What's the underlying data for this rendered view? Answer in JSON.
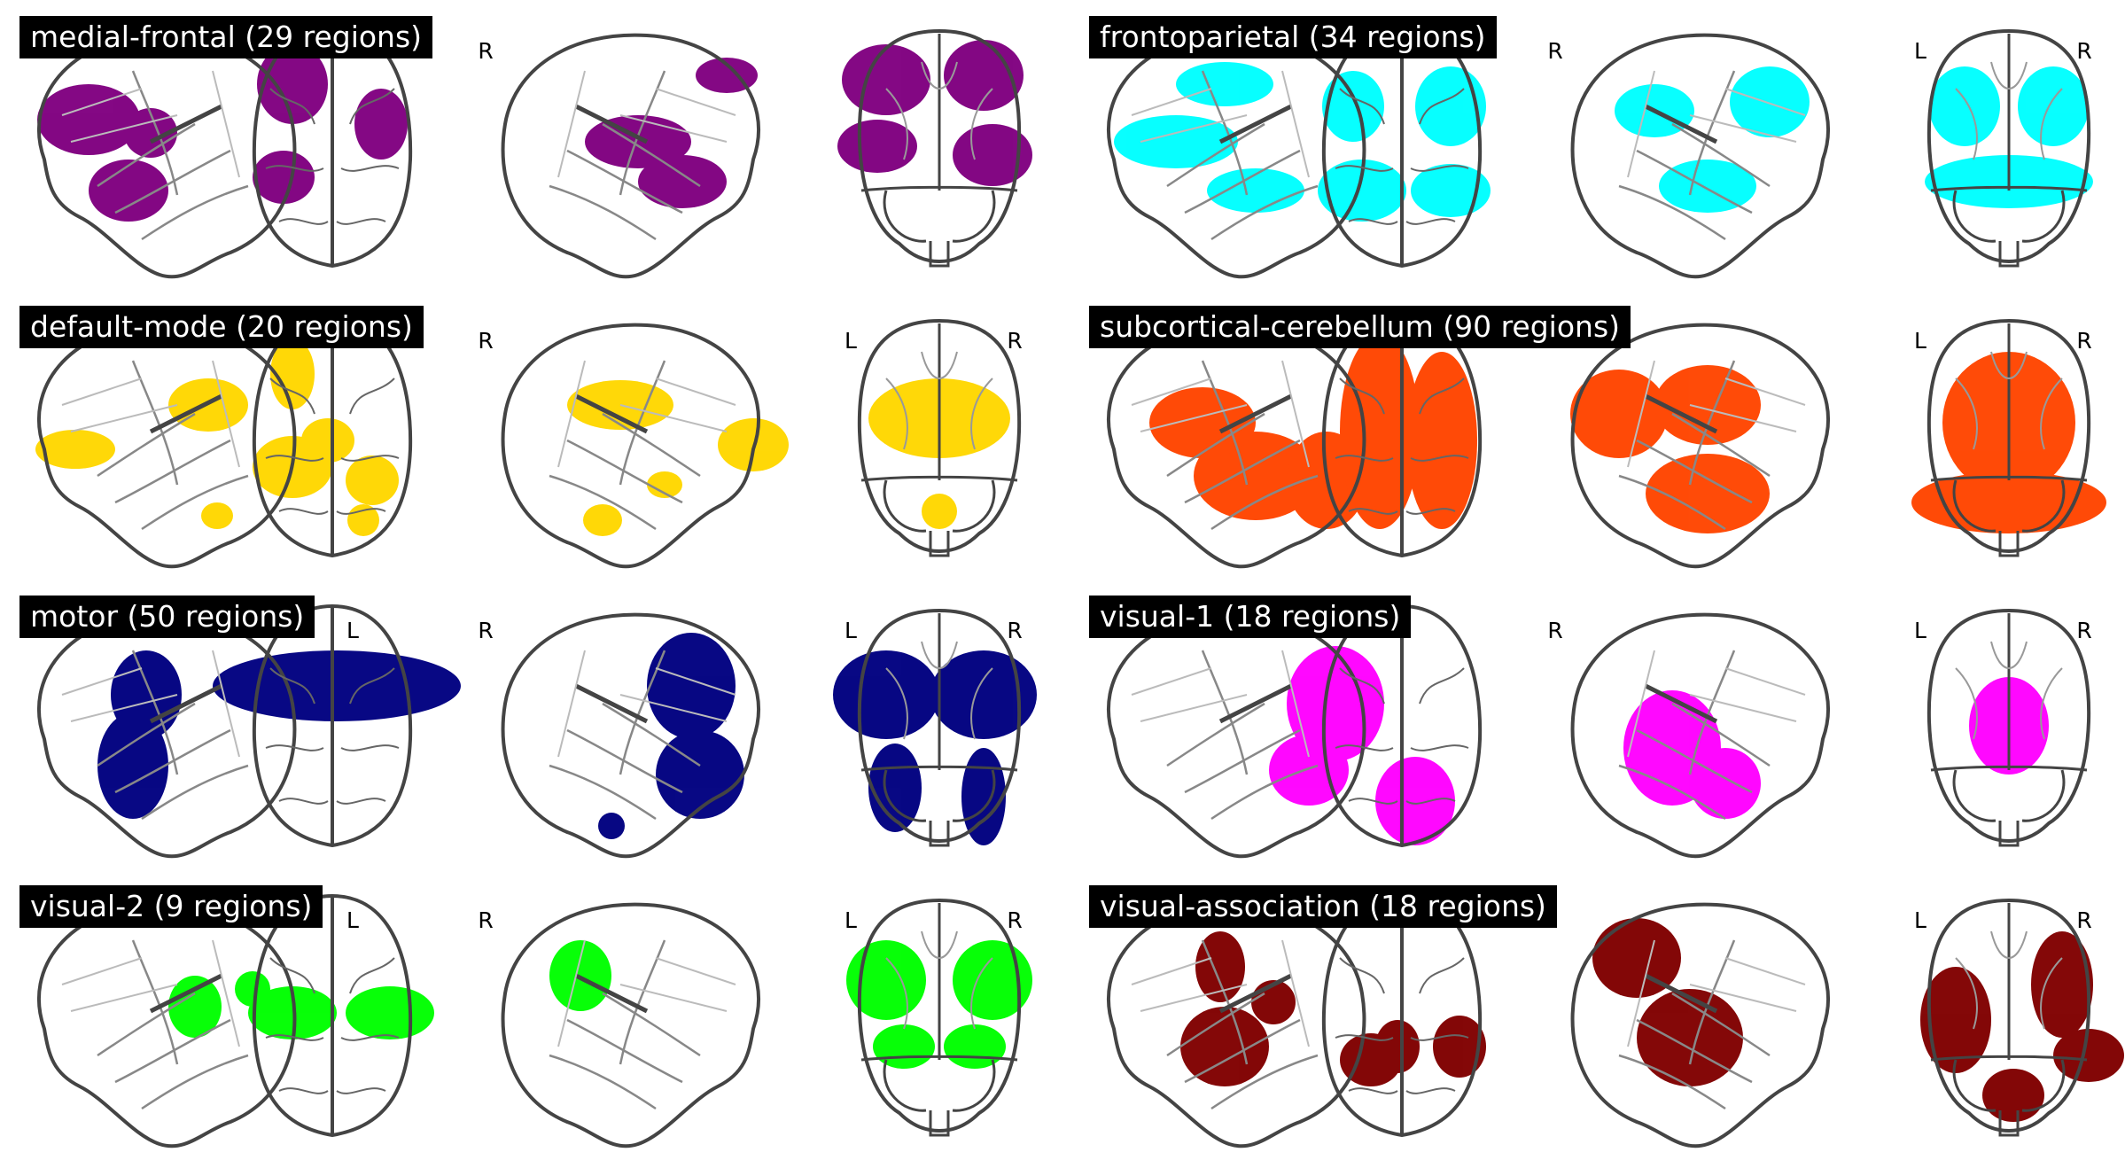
{
  "figure": {
    "panels": [
      {
        "title": "medial-frontal (29 regions)",
        "color": "#800080",
        "labels": {
          "left": "",
          "right": "R"
        },
        "coronal_labels": {
          "left": "",
          "right": ""
        }
      },
      {
        "title": "frontoparietal (34 regions)",
        "color": "#00ffff",
        "labels": {
          "left": "",
          "right": "R"
        },
        "coronal_labels": {
          "left": "L",
          "right": "R"
        }
      },
      {
        "title": "default-mode (20 regions)",
        "color": "#ffd700",
        "labels": {
          "left": "",
          "right": "R"
        },
        "coronal_labels": {
          "left": "L",
          "right": "R"
        }
      },
      {
        "title": "subcortical-cerebellum (90 regions)",
        "color": "#ff4500",
        "labels": {
          "left": "",
          "right": ""
        },
        "coronal_labels": {
          "left": "L",
          "right": "R"
        }
      },
      {
        "title": "motor (50 regions)",
        "color": "#000080",
        "labels": {
          "left": "L",
          "right": "R"
        },
        "coronal_labels": {
          "left": "L",
          "right": "R"
        }
      },
      {
        "title": "visual-1 (18 regions)",
        "color": "#ff00ff",
        "labels": {
          "left": "",
          "right": "R"
        },
        "coronal_labels": {
          "left": "L",
          "right": "R"
        }
      },
      {
        "title": "visual-2 (9 regions)",
        "color": "#00ff00",
        "labels": {
          "left": "L",
          "right": "R"
        },
        "coronal_labels": {
          "left": "L",
          "right": "R"
        }
      },
      {
        "title": "visual-association (18 regions)",
        "color": "#800000",
        "labels": {
          "left": "",
          "right": ""
        },
        "coronal_labels": {
          "left": "L",
          "right": "R"
        }
      }
    ]
  }
}
